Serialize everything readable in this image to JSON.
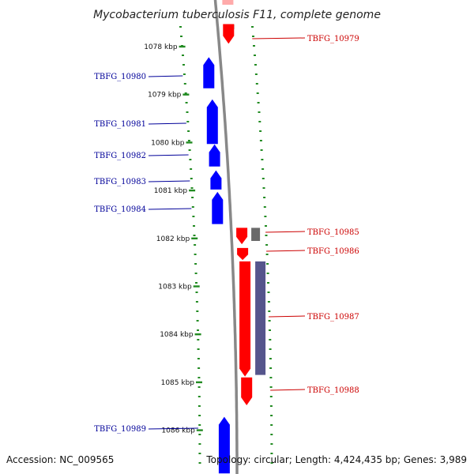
{
  "title": "Mycobacterium tuberculosis F11, complete genome",
  "footer": {
    "accession": "Accession: NC_009565",
    "topology": "Topology: circular; Length: 4,424,435 bp; Genes: 3,989"
  },
  "colors": {
    "forward_gene": "#0000ff",
    "reverse_gene": "#ff0000",
    "left_label": "#000099",
    "right_label": "#cc0000",
    "dots": "#228b22",
    "backbone": "#888888"
  },
  "ticks": [
    {
      "kbp": 1078,
      "label": "1078 kbp"
    },
    {
      "kbp": 1079,
      "label": "1079 kbp"
    },
    {
      "kbp": 1080,
      "label": "1080 kbp"
    },
    {
      "kbp": 1081,
      "label": "1081 kbp"
    },
    {
      "kbp": 1082,
      "label": "1082 kbp"
    },
    {
      "kbp": 1083,
      "label": "1083 kbp"
    },
    {
      "kbp": 1084,
      "label": "1084 kbp"
    },
    {
      "kbp": 1085,
      "label": "1085 kbp"
    },
    {
      "kbp": 1086,
      "label": "1086 kbp"
    }
  ],
  "genes": [
    {
      "name": "TBFG_10979",
      "strand": "reverse",
      "start": 1077.53,
      "end": 1077.94
    },
    {
      "name": "TBFG_10980",
      "strand": "forward",
      "start": 1078.22,
      "end": 1078.87
    },
    {
      "name": "TBFG_10981",
      "strand": "forward",
      "start": 1079.1,
      "end": 1080.03
    },
    {
      "name": "TBFG_10982",
      "strand": "forward",
      "start": 1080.04,
      "end": 1080.5
    },
    {
      "name": "TBFG_10983",
      "strand": "forward",
      "start": 1080.58,
      "end": 1080.98
    },
    {
      "name": "TBFG_10984",
      "strand": "forward",
      "start": 1081.03,
      "end": 1081.7
    },
    {
      "name": "TBFG_10985",
      "strand": "reverse",
      "start": 1081.78,
      "end": 1082.12
    },
    {
      "name": "TBFG_10986",
      "strand": "reverse",
      "start": 1082.2,
      "end": 1082.45
    },
    {
      "name": "TBFG_10987",
      "strand": "reverse",
      "start": 1082.48,
      "end": 1084.88
    },
    {
      "name": "TBFG_10988",
      "strand": "reverse",
      "start": 1084.9,
      "end": 1085.48
    },
    {
      "name": "TBFG_10989",
      "strand": "forward",
      "start": 1085.72,
      "end": 1086.9
    }
  ]
}
